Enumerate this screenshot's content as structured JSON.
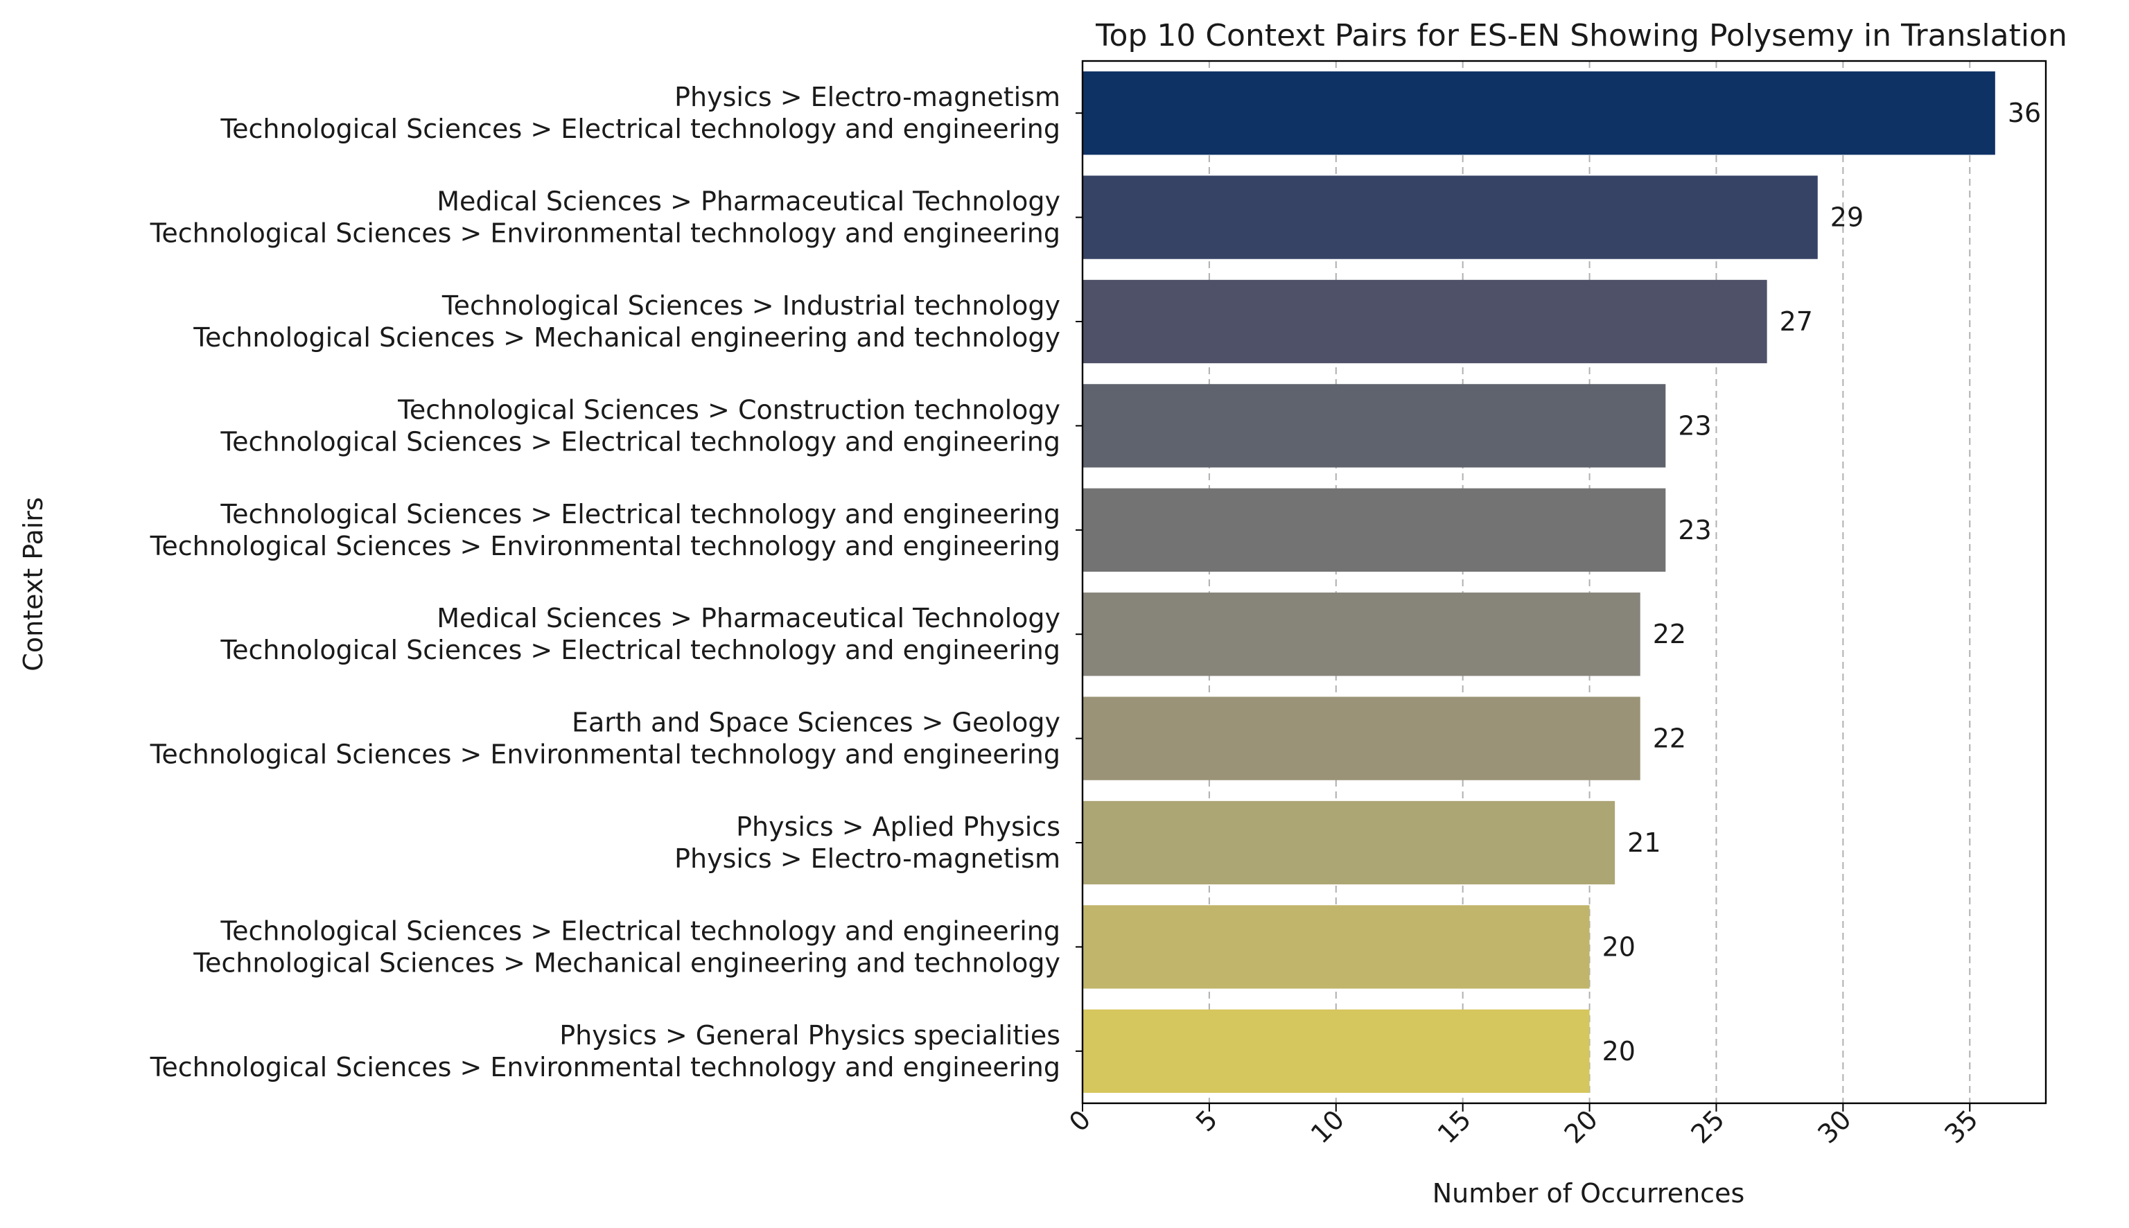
{
  "chart_data": {
    "type": "bar",
    "orientation": "horizontal",
    "title": "Top 10 Context Pairs for ES-EN Showing Polysemy in Translation",
    "xlabel": "Number of Occurrences",
    "ylabel": "Context Pairs",
    "xlim": [
      0,
      38
    ],
    "xticks": [
      "0",
      "5",
      "10",
      "15",
      "20",
      "25",
      "30",
      "35"
    ],
    "xtick_rotation_deg": 45,
    "grid": "x-axis dashed",
    "categories": [
      [
        "Physics > Electro-magnetism",
        "Technological Sciences > Electrical technology and engineering"
      ],
      [
        "Medical Sciences > Pharmaceutical Technology",
        "Technological Sciences > Environmental technology and engineering"
      ],
      [
        "Technological Sciences > Industrial technology",
        "Technological Sciences > Mechanical engineering and technology"
      ],
      [
        "Technological Sciences > Construction technology",
        "Technological Sciences > Electrical technology and engineering"
      ],
      [
        "Technological Sciences > Electrical technology and engineering",
        "Technological Sciences > Environmental technology and engineering"
      ],
      [
        "Medical Sciences > Pharmaceutical Technology",
        "Technological Sciences > Electrical technology and engineering"
      ],
      [
        "Earth and Space Sciences > Geology",
        "Technological Sciences > Environmental technology and engineering"
      ],
      [
        "Physics > Aplied Physics",
        "Physics > Electro-magnetism"
      ],
      [
        "Technological Sciences > Electrical technology and engineering",
        "Technological Sciences > Mechanical engineering and technology"
      ],
      [
        "Physics > General Physics specialities",
        "Technological Sciences > Environmental technology and engineering"
      ]
    ],
    "values": [
      36,
      29,
      27,
      23,
      23,
      22,
      22,
      21,
      20,
      20
    ],
    "value_labels": [
      "36",
      "29",
      "27",
      "23",
      "23",
      "22",
      "22",
      "21",
      "20",
      "20"
    ],
    "colors": [
      "#0f3265",
      "#364364",
      "#4e5167",
      "#5f636d",
      "#737373",
      "#87847a",
      "#9a9377",
      "#aca574",
      "#c0b56b",
      "#d5c65d"
    ]
  }
}
